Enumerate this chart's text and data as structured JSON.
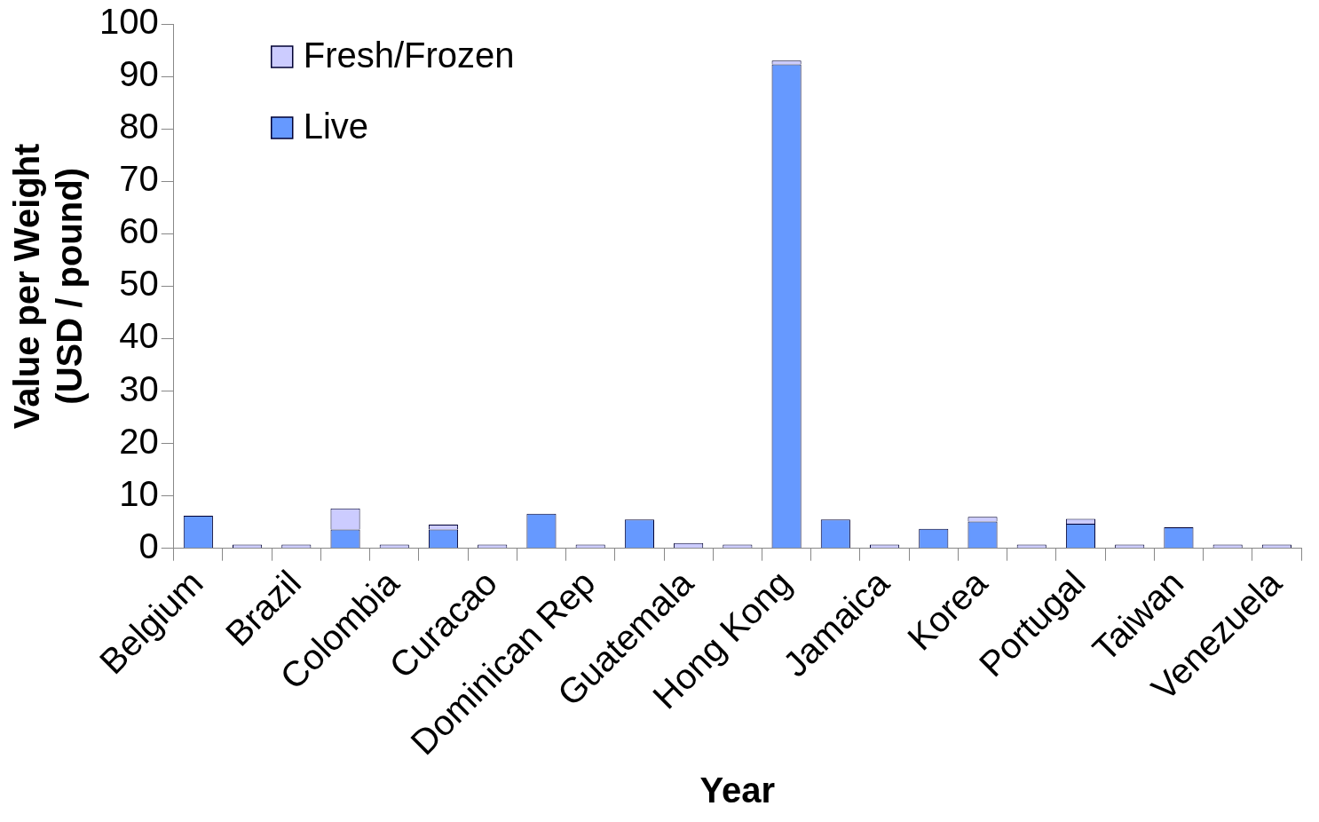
{
  "chart_data": {
    "type": "bar",
    "stacked": true,
    "xlabel": "Year",
    "ylabel": "Value per Weight\n(USD / pound)",
    "categories": [
      "Belgium",
      null,
      "Brazil",
      null,
      "Colombia",
      null,
      "Curacao",
      null,
      "Dominican Rep",
      null,
      "Guatemala",
      null,
      "Hong Kong",
      null,
      "Jamaica",
      null,
      "Korea",
      null,
      "Portugal",
      null,
      "Taiwan",
      null,
      "Venezuela"
    ],
    "series": [
      {
        "name": "Live",
        "color": "#6699ff",
        "values": [
          6.2,
          null,
          null,
          3.6,
          null,
          3.6,
          null,
          6.6,
          null,
          5.5,
          null,
          null,
          92.3,
          5.5,
          null,
          3.7,
          5.1,
          null,
          4.7,
          null,
          4.0,
          null,
          null
        ]
      },
      {
        "name": "Fresh/Frozen",
        "color": "#ccccff",
        "values": [
          null,
          0.7,
          0.7,
          4.0,
          0.7,
          0.9,
          0.7,
          null,
          0.7,
          null,
          1.0,
          0.7,
          0.7,
          null,
          0.7,
          null,
          0.9,
          0.7,
          0.9,
          0.7,
          null,
          0.7,
          0.7
        ]
      }
    ],
    "ylim": [
      0,
      100
    ],
    "yticks": [
      0,
      10,
      20,
      30,
      40,
      50,
      60,
      70,
      80,
      90,
      100
    ],
    "grid": false,
    "legend": "top left"
  }
}
